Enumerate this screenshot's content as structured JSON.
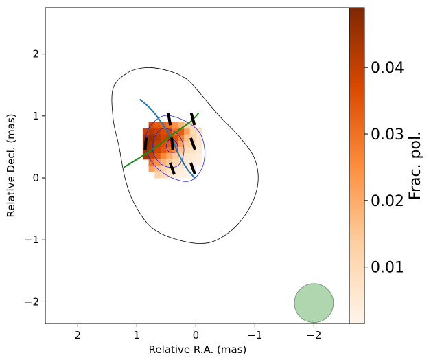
{
  "chart_data": {
    "type": "heatmap",
    "xlabel": "Relative R.A. (mas)",
    "ylabel": "Relative Decl. (mas)",
    "xlim": [
      2.55,
      -2.6
    ],
    "ylim": [
      -2.35,
      2.75
    ],
    "xticks": [
      2,
      1,
      0,
      -1,
      -2
    ],
    "yticks": [
      -2,
      -1,
      0,
      1,
      2
    ],
    "x_tick_labels": [
      "2",
      "1",
      "0",
      "−1",
      "−2"
    ],
    "y_tick_labels": [
      "−2",
      "−1",
      "0",
      "1",
      "2"
    ],
    "colorbar": {
      "label": "Frac. pol.",
      "range": [
        0.0015,
        0.049
      ],
      "ticks": [
        0.01,
        0.02,
        0.03,
        0.04
      ],
      "tick_labels": [
        "0.01",
        "0.02",
        "0.03",
        "0.04"
      ],
      "colormap": [
        "#fff5eb",
        "#fdd0a2",
        "#fd8d3c",
        "#d94801",
        "#7f2704"
      ]
    },
    "pixel_size": 0.1,
    "pixels": [
      [
        0.85,
        0.75,
        0.04
      ],
      [
        0.75,
        0.75,
        0.042
      ],
      [
        0.65,
        0.75,
        0.04
      ],
      [
        0.55,
        0.75,
        0.036
      ],
      [
        0.45,
        0.75,
        0.038
      ],
      [
        0.35,
        0.75,
        0.03
      ],
      [
        0.25,
        0.75,
        0.034
      ],
      [
        0.15,
        0.75,
        0.022
      ],
      [
        0.05,
        0.75,
        0.01
      ],
      [
        -0.05,
        0.75,
        0.008
      ],
      [
        0.85,
        0.65,
        0.044
      ],
      [
        0.75,
        0.65,
        0.046
      ],
      [
        0.65,
        0.65,
        0.042
      ],
      [
        0.55,
        0.65,
        0.038
      ],
      [
        0.45,
        0.65,
        0.04
      ],
      [
        0.35,
        0.65,
        0.036
      ],
      [
        0.25,
        0.65,
        0.028
      ],
      [
        0.15,
        0.65,
        0.016
      ],
      [
        0.05,
        0.65,
        0.012
      ],
      [
        -0.05,
        0.65,
        0.006
      ],
      [
        0.85,
        0.55,
        0.048
      ],
      [
        0.75,
        0.55,
        0.044
      ],
      [
        0.65,
        0.55,
        0.04
      ],
      [
        0.55,
        0.55,
        0.036
      ],
      [
        0.45,
        0.55,
        0.034
      ],
      [
        0.35,
        0.55,
        0.032
      ],
      [
        0.25,
        0.55,
        0.022
      ],
      [
        0.15,
        0.55,
        0.014
      ],
      [
        0.05,
        0.55,
        0.01
      ],
      [
        -0.05,
        0.55,
        0.006
      ],
      [
        0.85,
        0.45,
        0.046
      ],
      [
        0.75,
        0.45,
        0.044
      ],
      [
        0.65,
        0.45,
        0.038
      ],
      [
        0.55,
        0.45,
        0.034
      ],
      [
        0.45,
        0.45,
        0.03
      ],
      [
        0.35,
        0.45,
        0.026
      ],
      [
        0.25,
        0.45,
        0.016
      ],
      [
        0.15,
        0.45,
        0.01
      ],
      [
        0.05,
        0.45,
        0.008
      ],
      [
        -0.05,
        0.45,
        0.005
      ],
      [
        0.85,
        0.35,
        0.044
      ],
      [
        0.75,
        0.35,
        0.04
      ],
      [
        0.65,
        0.35,
        0.034
      ],
      [
        0.55,
        0.35,
        0.026
      ],
      [
        0.45,
        0.35,
        0.02
      ],
      [
        0.35,
        0.35,
        0.014
      ],
      [
        0.25,
        0.35,
        0.01
      ],
      [
        0.15,
        0.35,
        0.006
      ],
      [
        0.05,
        0.35,
        0.005
      ],
      [
        -0.05,
        0.35,
        0.004
      ],
      [
        0.75,
        0.25,
        0.03
      ],
      [
        0.65,
        0.25,
        0.024
      ],
      [
        0.55,
        0.25,
        0.018
      ],
      [
        0.45,
        0.25,
        0.014
      ],
      [
        0.35,
        0.25,
        0.01
      ],
      [
        0.25,
        0.25,
        0.008
      ],
      [
        0.15,
        0.25,
        0.005
      ],
      [
        0.05,
        0.25,
        0.004
      ],
      [
        -0.05,
        0.25,
        0.003
      ],
      [
        0.75,
        0.15,
        0.022
      ],
      [
        0.65,
        0.15,
        0.016
      ],
      [
        0.55,
        0.15,
        0.012
      ],
      [
        0.45,
        0.15,
        0.008
      ],
      [
        0.35,
        0.15,
        0.006
      ],
      [
        0.25,
        0.15,
        0.004
      ],
      [
        0.15,
        0.15,
        0.003
      ],
      [
        0.05,
        0.15,
        0.003
      ],
      [
        0.65,
        0.05,
        0.012
      ],
      [
        0.55,
        0.05,
        0.01
      ],
      [
        0.45,
        0.05,
        0.006
      ],
      [
        0.35,
        0.05,
        0.004
      ],
      [
        0.25,
        0.05,
        0.003
      ],
      [
        0.15,
        0.05,
        0.002
      ],
      [
        0.75,
        0.85,
        0.036
      ],
      [
        0.65,
        0.85,
        0.034
      ],
      [
        0.55,
        0.85,
        0.032
      ],
      [
        0.45,
        0.85,
        0.03
      ],
      [
        0.35,
        0.85,
        0.024
      ],
      [
        0.25,
        0.85,
        0.018
      ],
      [
        0.15,
        0.85,
        0.012
      ],
      [
        0.05,
        0.85,
        0.01
      ]
    ],
    "outer_contour": [
      [
        0.55,
        1.75
      ],
      [
        0.25,
        1.65
      ],
      [
        0.05,
        1.5
      ],
      [
        -0.35,
        1.05
      ],
      [
        -0.75,
        0.65
      ],
      [
        -1.0,
        0.3
      ],
      [
        -1.05,
        -0.1
      ],
      [
        -0.9,
        -0.5
      ],
      [
        -0.6,
        -0.85
      ],
      [
        -0.2,
        -1.05
      ],
      [
        0.3,
        -1.0
      ],
      [
        0.75,
        -0.8
      ],
      [
        1.05,
        -0.4
      ],
      [
        1.2,
        0.0
      ],
      [
        1.3,
        0.5
      ],
      [
        1.4,
        0.95
      ],
      [
        1.4,
        1.45
      ],
      [
        1.15,
        1.7
      ],
      [
        0.85,
        1.78
      ]
    ],
    "inner_contours": [
      [
        [
          0.55,
          1.0
        ],
        [
          0.25,
          0.95
        ],
        [
          -0.05,
          0.75
        ],
        [
          -0.15,
          0.45
        ],
        [
          -0.1,
          0.15
        ],
        [
          0.1,
          -0.05
        ],
        [
          0.4,
          0.0
        ],
        [
          0.7,
          0.2
        ],
        [
          0.85,
          0.5
        ],
        [
          0.8,
          0.8
        ]
      ],
      [
        [
          0.55,
          0.8
        ],
        [
          0.3,
          0.7
        ],
        [
          0.2,
          0.45
        ],
        [
          0.3,
          0.2
        ],
        [
          0.55,
          0.2
        ],
        [
          0.72,
          0.4
        ],
        [
          0.7,
          0.65
        ]
      ],
      [
        [
          0.43,
          0.63
        ],
        [
          0.32,
          0.56
        ],
        [
          0.32,
          0.43
        ],
        [
          0.45,
          0.42
        ],
        [
          0.5,
          0.52
        ]
      ]
    ],
    "ridge_line_blue": [
      [
        0.95,
        1.27
      ],
      [
        0.75,
        1.1
      ],
      [
        0.55,
        0.85
      ],
      [
        0.4,
        0.62
      ],
      [
        0.3,
        0.4
      ],
      [
        0.15,
        0.15
      ],
      [
        0.02,
        0.0
      ]
    ],
    "fit_line_green": [
      [
        1.22,
        0.17
      ],
      [
        0.75,
        0.45
      ],
      [
        0.4,
        0.7
      ],
      [
        0.1,
        0.9
      ],
      [
        -0.05,
        1.05
      ]
    ],
    "evpa_ticks": [
      [
        0.45,
        0.95,
        -10
      ],
      [
        0.05,
        0.95,
        -15
      ],
      [
        0.85,
        0.55,
        5
      ],
      [
        0.4,
        0.55,
        -5
      ],
      [
        0.05,
        0.55,
        -20
      ],
      [
        0.4,
        0.15,
        -20
      ],
      [
        0.05,
        0.15,
        -20
      ]
    ],
    "beam": {
      "x": -2.0,
      "y": -2.02,
      "radius": 0.33,
      "color": "#9ccc9c"
    }
  }
}
